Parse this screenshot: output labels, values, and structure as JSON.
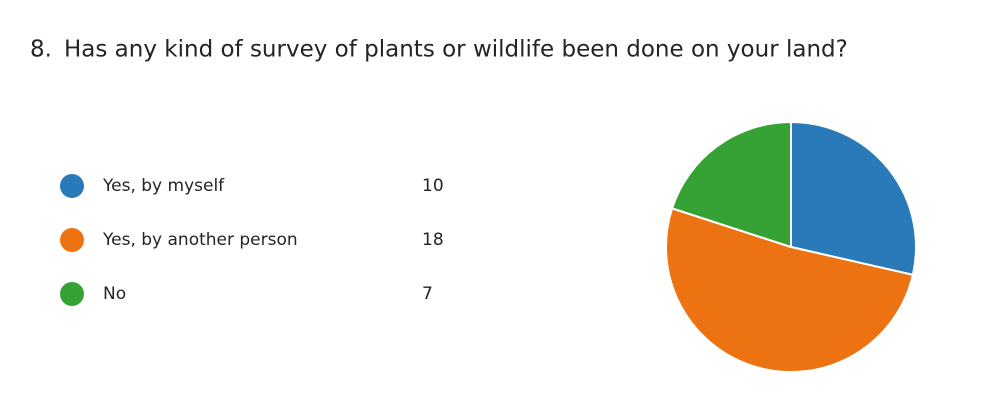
{
  "chart_data": {
    "type": "pie",
    "number": "8.",
    "title": "Has any kind of survey of plants or wildlife been done on your land?",
    "categories": [
      "Yes, by myself",
      "Yes, by another person",
      "No"
    ],
    "values": [
      10,
      18,
      7
    ],
    "colors": [
      "#2a7ab9",
      "#ed7211",
      "#36a135"
    ]
  }
}
